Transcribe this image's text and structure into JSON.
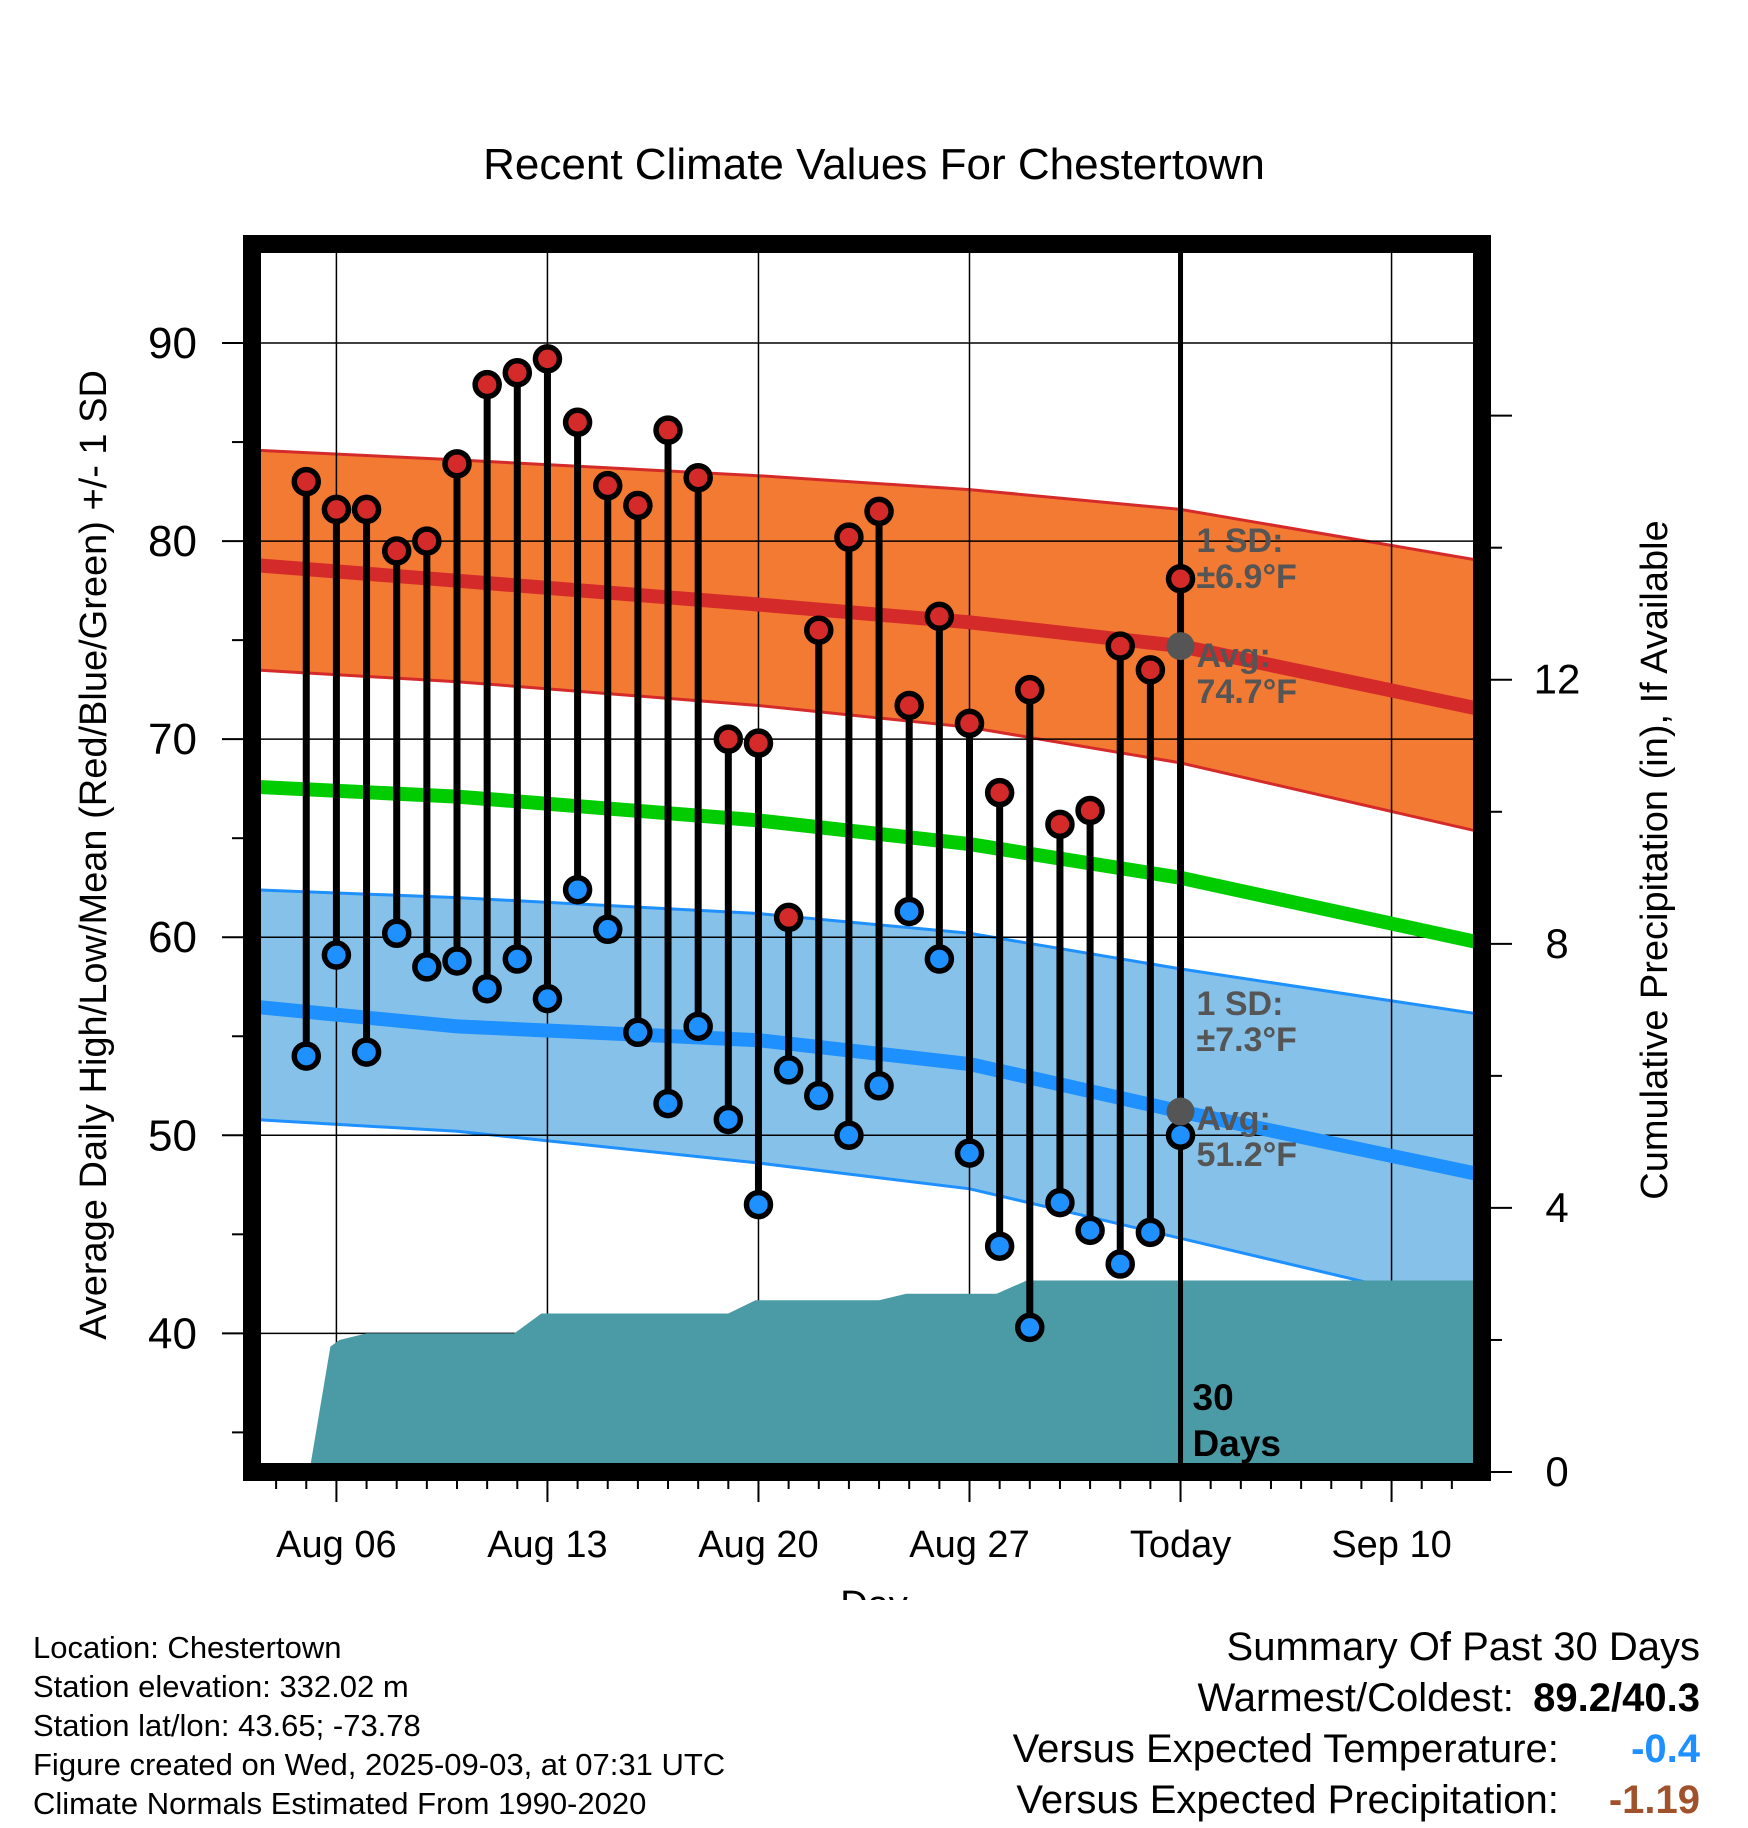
{
  "chart_data": {
    "type": "line",
    "title": "Recent Climate Values For Chestertown",
    "xlabel": "Day",
    "ylabel": "Average Daily High/Low/Mean (Red/Blue/Green) +/- 1 SD",
    "y2label": "Cumulative Precipitation (in), If Available",
    "ylim": [
      33,
      95
    ],
    "y2lim": [
      0,
      18.6
    ],
    "xlim": [
      3.2,
      44
    ],
    "x_ticks": [
      {
        "x": 6,
        "label": "Aug 06"
      },
      {
        "x": 13,
        "label": "Aug 13"
      },
      {
        "x": 20,
        "label": "Aug 20"
      },
      {
        "x": 27,
        "label": "Aug 27"
      },
      {
        "x": 34,
        "label": "Today"
      },
      {
        "x": 41,
        "label": "Sep 10"
      }
    ],
    "y_ticks": [
      40,
      50,
      60,
      70,
      80,
      90
    ],
    "y2_ticks": [
      0,
      4,
      8,
      12
    ],
    "x_day_offset_note": "",
    "daily_high": [
      83.0,
      81.6,
      81.6,
      79.5,
      80.0,
      83.9,
      87.9,
      88.5,
      89.2,
      86.0,
      82.8,
      81.8,
      85.6,
      83.2,
      70.0,
      69.8,
      61.0,
      75.5,
      80.2,
      81.5,
      71.7,
      76.2,
      70.8,
      67.3,
      72.5,
      65.7,
      66.4,
      74.7,
      73.5,
      78.1
    ],
    "daily_low": [
      54.0,
      59.1,
      54.2,
      60.2,
      58.5,
      58.8,
      57.4,
      58.9,
      56.9,
      62.4,
      60.4,
      55.2,
      51.6,
      55.5,
      50.8,
      46.5,
      53.3,
      52.0,
      50.0,
      52.5,
      61.3,
      58.9,
      49.1,
      44.4,
      40.3,
      46.6,
      45.2,
      43.5,
      45.1,
      50.0
    ],
    "first_day_x": 5,
    "normals": {
      "x": [
        3.2,
        10,
        20,
        27,
        34,
        44
      ],
      "high_avg": [
        78.8,
        78.0,
        76.8,
        75.9,
        74.7,
        71.5
      ],
      "high_upper": [
        84.6,
        84.1,
        83.3,
        82.6,
        81.6,
        79.0
      ],
      "high_lower": [
        73.5,
        72.9,
        71.7,
        70.6,
        68.8,
        65.3
      ],
      "mean_avg": [
        67.6,
        67.1,
        65.9,
        64.7,
        63.0,
        59.7
      ],
      "low_avg": [
        56.5,
        55.5,
        54.8,
        53.6,
        51.2,
        48.0
      ],
      "low_upper": [
        62.4,
        62.0,
        61.2,
        60.2,
        58.4,
        56.1
      ],
      "low_lower": [
        50.8,
        50.2,
        48.6,
        47.3,
        44.8,
        41.2
      ]
    },
    "precip": {
      "x": [
        3.2,
        5.0,
        5.1,
        5.8,
        6.1,
        7.0,
        11.9,
        12.8,
        19.0,
        19.9,
        24.0,
        24.9,
        27.9,
        28.9,
        44
      ],
      "y": [
        0,
        0,
        0,
        1.9,
        2.0,
        2.1,
        2.1,
        2.4,
        2.4,
        2.6,
        2.6,
        2.7,
        2.7,
        2.9,
        2.9
      ]
    },
    "today_x": 34,
    "colors": {
      "high_band": "#f37a32",
      "high_line": "#d42a2a",
      "low_band": "#85c1e9",
      "low_line": "#1e90ff",
      "mean_line": "#00cc00",
      "precip_fill": "#4a9ba5",
      "high_marker": "#d42a2a",
      "low_marker": "#1e90ff",
      "annotation": "#555555"
    },
    "annotations": {
      "high_sd": [
        "1 SD:",
        "±6.9°F"
      ],
      "high_avg": [
        "Avg:",
        "74.7°F"
      ],
      "low_sd": [
        "1 SD:",
        "±7.3°F"
      ],
      "low_avg": [
        "Avg:",
        "51.2°F"
      ],
      "days": [
        "30",
        "Days"
      ]
    }
  },
  "info": {
    "location": "Location: Chestertown",
    "elevation": "Station elevation: 332.02 m",
    "latlon": "Station lat/lon: 43.65; -73.78",
    "created": "Figure created on Wed, 2025-09-03, at 07:31 UTC",
    "normals": "Climate Normals Estimated From 1990-2020"
  },
  "summary": {
    "heading": "Summary Of Past 30 Days",
    "warm_cold_label": "Warmest/Coldest:",
    "warm_cold_value": "89.2/40.3",
    "temp_label": "Versus Expected Temperature:",
    "temp_value": "-0.4",
    "precip_label": "Versus Expected Precipitation:",
    "precip_value": "-1.19"
  }
}
